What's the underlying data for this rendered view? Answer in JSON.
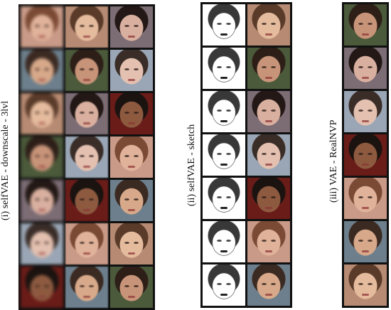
{
  "panels": [
    {
      "id": "i",
      "label": "(i) selfVAE - downscale - 3lvl",
      "rows": 7,
      "cols": 3
    },
    {
      "id": "ii",
      "label": "(ii) selfVAE - sketch",
      "rows": 7,
      "cols": 2
    },
    {
      "id": "iii",
      "label": "(iii) VAE - RealNVP",
      "rows": 7,
      "cols": 1
    }
  ]
}
